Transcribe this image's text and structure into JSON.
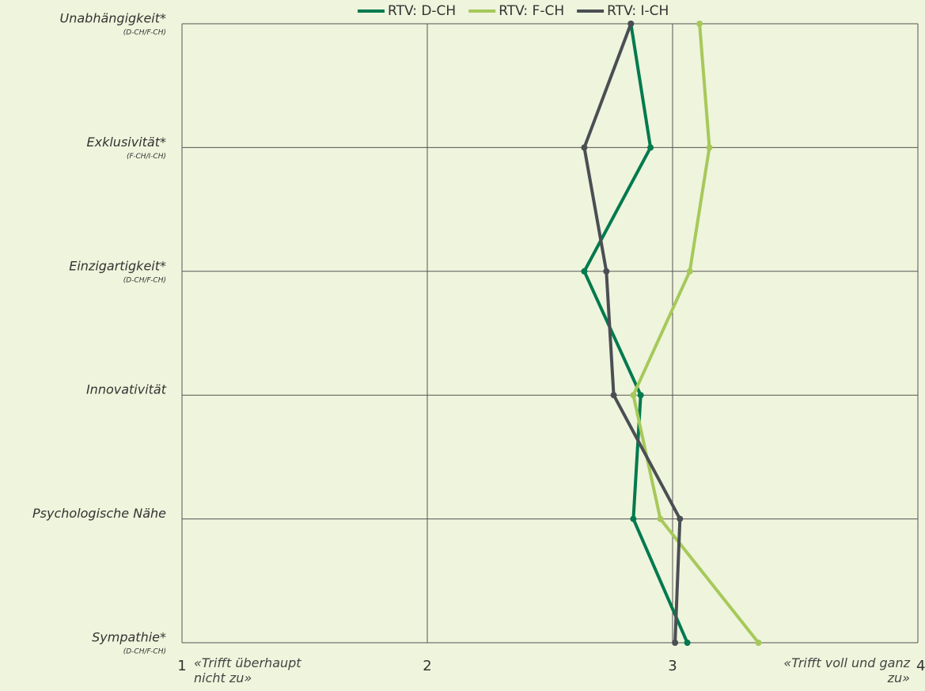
{
  "chart_data": {
    "type": "line",
    "categories": [
      "Unabhängigkeit*",
      "Exklusivität*",
      "Einzigartigkeit*",
      "Innovativität",
      "Psychologische Nähe",
      "Sympathie*"
    ],
    "sublabels": [
      "(D-CH/F-CH)",
      "(F-CH/I-CH)",
      "(D-CH/F-CH)",
      null,
      null,
      "(D-CH/F-CH)"
    ],
    "series": [
      {
        "name": "RTV: D-CH",
        "color": "#007a4e",
        "values": [
          2.83,
          2.91,
          2.64,
          2.87,
          2.84,
          3.06
        ]
      },
      {
        "name": "RTV: F-CH",
        "color": "#a6c95a",
        "values": [
          3.11,
          3.15,
          3.07,
          2.84,
          2.95,
          3.35
        ]
      },
      {
        "name": "RTV: I-CH",
        "color": "#4a4f55",
        "values": [
          2.83,
          2.64,
          2.73,
          2.76,
          3.03,
          3.01
        ]
      }
    ],
    "xlim": [
      1,
      4
    ],
    "xticks": [
      1,
      2,
      3,
      4
    ],
    "grid": true,
    "annotations": [
      "«Trifft überhaupt nicht zu»",
      "«Trifft voll und ganz zu»"
    ]
  }
}
